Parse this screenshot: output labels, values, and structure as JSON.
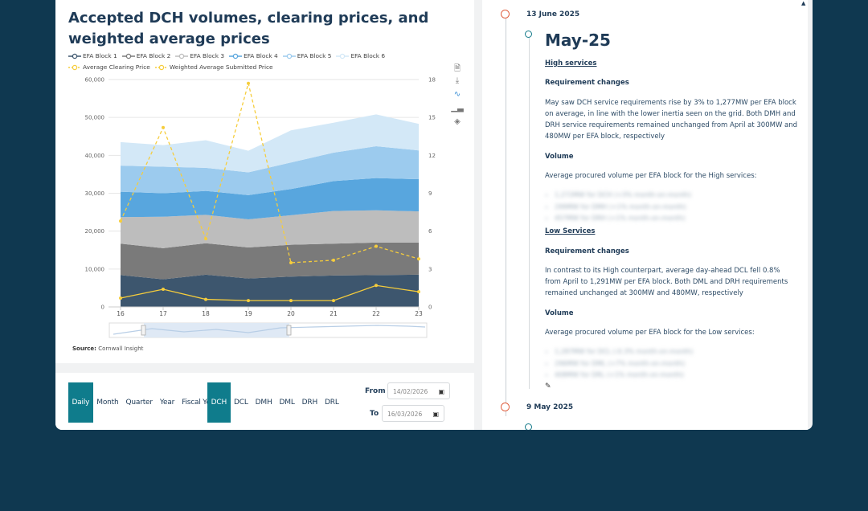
{
  "chart": {
    "title": "Accepted DCH volumes, clearing prices, and weighted average prices",
    "source_label": "Source:",
    "source_text": "Cornwall Insight",
    "legend": [
      {
        "name": "EFA Block 1",
        "color": "#3d566e"
      },
      {
        "name": "EFA Block 2",
        "color": "#7a7a7a"
      },
      {
        "name": "EFA Block 3",
        "color": "#bdbdbd"
      },
      {
        "name": "EFA Block 4",
        "color": "#58a6de"
      },
      {
        "name": "EFA Block 5",
        "color": "#9ccbee"
      },
      {
        "name": "EFA Block 6",
        "color": "#d3e8f7"
      },
      {
        "name": "Average Clearing Price",
        "color": "#f6cd3c"
      },
      {
        "name": "Weighted Average Submitted Price",
        "color": "#f6cd3c"
      }
    ],
    "tools": [
      "document-icon",
      "download-icon",
      "line-chart-icon",
      "bar-chart-icon",
      "layers-icon"
    ]
  },
  "chart_data": {
    "type": "area",
    "x": [
      16,
      17,
      18,
      19,
      20,
      21,
      22,
      23
    ],
    "ylim": [
      0,
      60000
    ],
    "y2lim": [
      0,
      18
    ],
    "yticks": [
      "0",
      "10,000",
      "20,000",
      "30,000",
      "40,000",
      "50,000",
      "60,000"
    ],
    "y2ticks": [
      "0",
      "3",
      "6",
      "9",
      "12",
      "15",
      "18"
    ],
    "stacked_series": [
      {
        "name": "EFA Block 1",
        "color": "#3d566e",
        "values": [
          8400,
          7300,
          8500,
          7500,
          8000,
          8300,
          8400,
          8500
        ]
      },
      {
        "name": "EFA Block 2",
        "color": "#7a7a7a",
        "values": [
          8300,
          8200,
          8300,
          8200,
          8400,
          8400,
          8600,
          8500
        ]
      },
      {
        "name": "EFA Block 3",
        "color": "#bdbdbd",
        "values": [
          7000,
          8300,
          7500,
          7400,
          7800,
          8600,
          8500,
          8200
        ]
      },
      {
        "name": "EFA Block 4",
        "color": "#58a6de",
        "values": [
          6700,
          6200,
          6300,
          6400,
          6900,
          7900,
          8500,
          8500
        ]
      },
      {
        "name": "EFA Block 5",
        "color": "#9ccbee",
        "values": [
          6900,
          7000,
          6100,
          6000,
          7000,
          7500,
          8400,
          7600
        ]
      },
      {
        "name": "EFA Block 6",
        "color": "#d3e8f7",
        "values": [
          6200,
          5700,
          7300,
          5700,
          8500,
          7900,
          8400,
          7000
        ]
      }
    ],
    "line_series": [
      {
        "name": "Average Clearing Price",
        "color": "#f6cd3c",
        "values": [
          0.7,
          1.4,
          0.6,
          0.5,
          0.5,
          0.5,
          1.7,
          1.2
        ]
      },
      {
        "name": "Weighted Average Submitted Price",
        "color": "#f6cd3c",
        "values": [
          6.8,
          14.2,
          5.4,
          17.7,
          3.5,
          3.7,
          4.8,
          3.8
        ]
      }
    ]
  },
  "controls": {
    "periods": [
      "Daily",
      "Month",
      "Quarter",
      "Year",
      "Fiscal Year"
    ],
    "services": [
      "DCH",
      "DCL",
      "DMH",
      "DML",
      "DRH",
      "DRL"
    ],
    "from_label": "From",
    "to_label": "To",
    "from_value": "14/02/2026",
    "to_value": "16/03/2026"
  },
  "timeline": {
    "entry1_date": "13 June 2025",
    "month": "May-25",
    "high_link": "High services",
    "req_changes": "Requirement changes",
    "high_para": "May saw DCH service requirements rise by 3% to 1,277MW per EFA block on average, in line with the lower inertia seen on the grid. Both DMH and DRH service requirements remained unchanged from April at 300MW and 480MW per EFA block, respectively",
    "volume": "Volume",
    "high_vol_intro": "Average procured volume per EFA block for the High services:",
    "high_bullets": [
      "1,272MW for DCH (+3% month-on-month)",
      "299MW for DMH (+1% month-on-month)",
      "457MW for DRH (+1% month-on-month)"
    ],
    "low_link": "Low Services",
    "low_para": "In contrast to its High counterpart, average day-ahead DCL fell 0.8% from April to 1,291MW per EFA block. Both DML and DRH requirements remained unchanged at 300MW and 480MW, respectively",
    "low_vol_intro": "Average procured volume per EFA block for the Low services:",
    "low_bullets": [
      "1,287MW for DCL (-0.3% month-on-month)",
      "296MW for DML (+7% month-on-month)",
      "408MW for DRL (+1% month-on-month)"
    ],
    "entry2_date": "9 May 2025"
  }
}
